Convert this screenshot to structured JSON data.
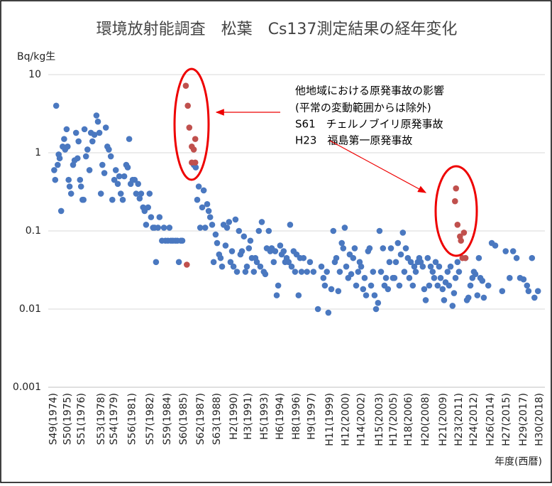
{
  "chart_data": {
    "type": "scatter",
    "title": "環境放射能調査　松葉　Cs137測定結果の経年変化",
    "y_label": "Bq/kg生",
    "x_label": "年度(西暦)",
    "annotations": [
      "他地域における原発事故の影響",
      "(平常の変動範囲からは除外)",
      "S61　チェルノブイリ原発事故",
      "H23　福島第一原発事故"
    ],
    "log_y": true,
    "grid": true,
    "ylim": [
      0.001,
      10
    ],
    "yticks": [
      10,
      1,
      0.1,
      0.01,
      0.001
    ],
    "xlim": [
      0,
      100
    ],
    "xticks": [
      {
        "value": 1.1,
        "label": "S49(1974)"
      },
      {
        "value": 3.9,
        "label": "S50(1975)"
      },
      {
        "value": 6.7,
        "label": "S51(1976)"
      },
      {
        "value": 10.7,
        "label": "S53(1978)"
      },
      {
        "value": 13.3,
        "label": "S54(1979)"
      },
      {
        "value": 16.9,
        "label": "S56(1981)"
      },
      {
        "value": 20.6,
        "label": "S57(1982)"
      },
      {
        "value": 24,
        "label": "S59(1984)"
      },
      {
        "value": 27.3,
        "label": "S60(1985)"
      },
      {
        "value": 30.7,
        "label": "S62(1987)"
      },
      {
        "value": 34,
        "label": "S63(1988)"
      },
      {
        "value": 37.4,
        "label": "H2(1990)"
      },
      {
        "value": 40.3,
        "label": "H3(1991)"
      },
      {
        "value": 43.6,
        "label": "H5(1993)"
      },
      {
        "value": 46.7,
        "label": "H6(1994)"
      },
      {
        "value": 50,
        "label": "H8(1996)"
      },
      {
        "value": 53.1,
        "label": "H9(1997)"
      },
      {
        "value": 56.7,
        "label": "H11(1999)"
      },
      {
        "value": 59.9,
        "label": "H12(2000)"
      },
      {
        "value": 63.1,
        "label": "H14(2002)"
      },
      {
        "value": 66.7,
        "label": "H15(2003)"
      },
      {
        "value": 69.6,
        "label": "H17(2005)"
      },
      {
        "value": 72.6,
        "label": "H18(2006)"
      },
      {
        "value": 76,
        "label": "H20(2008)"
      },
      {
        "value": 79.6,
        "label": "H21(2009)"
      },
      {
        "value": 82.7,
        "label": "H23(2011)"
      },
      {
        "value": 85.7,
        "label": "H24(2012)"
      },
      {
        "value": 89.1,
        "label": "H26(2014)"
      },
      {
        "value": 92.3,
        "label": "H27(2015)"
      },
      {
        "value": 95.7,
        "label": "H29(2017)"
      },
      {
        "value": 98.9,
        "label": "H30(2018)"
      }
    ],
    "series": [
      {
        "color": "#4a78c0",
        "points": [
          [
            1.2,
            0.6
          ],
          [
            1.4,
            0.45
          ],
          [
            1.6,
            4.0
          ],
          [
            1.9,
            0.7
          ],
          [
            2.1,
            0.95
          ],
          [
            2.3,
            0.85
          ],
          [
            2.6,
            0.18
          ],
          [
            2.9,
            1.2
          ],
          [
            3.2,
            1.5
          ],
          [
            3.4,
            1.1
          ],
          [
            3.7,
            2.0
          ],
          [
            3.9,
            1.2
          ],
          [
            4.1,
            0.45
          ],
          [
            4.3,
            0.37
          ],
          [
            4.6,
            0.3
          ],
          [
            5.0,
            0.7
          ],
          [
            5.3,
            0.8
          ],
          [
            5.6,
            1.8
          ],
          [
            5.9,
            0.85
          ],
          [
            6.1,
            1.4
          ],
          [
            6.4,
            0.45
          ],
          [
            6.6,
            0.37
          ],
          [
            6.9,
            0.25
          ],
          [
            7.1,
            0.25
          ],
          [
            7.3,
            2.0
          ],
          [
            7.6,
            0.9
          ],
          [
            7.9,
            1.1
          ],
          [
            8.3,
            0.6
          ],
          [
            8.6,
            1.8
          ],
          [
            8.9,
            1.4
          ],
          [
            9.3,
            1.7
          ],
          [
            9.7,
            3.0
          ],
          [
            10.0,
            2.5
          ],
          [
            10.3,
            1.8
          ],
          [
            10.6,
            0.3
          ],
          [
            10.9,
            0.7
          ],
          [
            11.3,
            0.55
          ],
          [
            11.6,
            2.1
          ],
          [
            11.9,
            1.2
          ],
          [
            12.2,
            1.1
          ],
          [
            12.6,
            0.9
          ],
          [
            12.9,
            0.25
          ],
          [
            13.3,
            0.45
          ],
          [
            13.6,
            0.6
          ],
          [
            14.0,
            0.4
          ],
          [
            14.3,
            0.5
          ],
          [
            14.6,
            0.3
          ],
          [
            15.0,
            0.25
          ],
          [
            15.3,
            0.5
          ],
          [
            15.7,
            0.7
          ],
          [
            16.0,
            0.65
          ],
          [
            16.3,
            1.5
          ],
          [
            16.6,
            0.4
          ],
          [
            17.0,
            0.45
          ],
          [
            17.4,
            0.45
          ],
          [
            17.7,
            0.3
          ],
          [
            18.1,
            0.4
          ],
          [
            18.4,
            0.26
          ],
          [
            18.7,
            0.3
          ],
          [
            19.1,
            0.2
          ],
          [
            19.4,
            0.18
          ],
          [
            19.7,
            0.12
          ],
          [
            20.1,
            0.2
          ],
          [
            20.4,
            0.3
          ],
          [
            20.7,
            0.15
          ],
          [
            21.1,
            0.11
          ],
          [
            21.4,
            0.11
          ],
          [
            21.7,
            0.04
          ],
          [
            22.1,
            0.11
          ],
          [
            22.4,
            0.15
          ],
          [
            22.9,
            0.075
          ],
          [
            23.3,
            0.11
          ],
          [
            23.6,
            0.075
          ],
          [
            24.1,
            0.075
          ],
          [
            24.4,
            0.11
          ],
          [
            24.7,
            0.075
          ],
          [
            25.1,
            0.075
          ],
          [
            25.6,
            0.075
          ],
          [
            26.0,
            0.075
          ],
          [
            26.3,
            0.04
          ],
          [
            26.7,
            0.075
          ],
          [
            27.0,
            0.075
          ],
          [
            29.3,
            0.7
          ],
          [
            29.7,
            0.65
          ],
          [
            30.0,
            0.25
          ],
          [
            30.3,
            0.37
          ],
          [
            30.6,
            0.11
          ],
          [
            31.0,
            0.2
          ],
          [
            31.3,
            0.33
          ],
          [
            31.6,
            0.11
          ],
          [
            32.0,
            0.22
          ],
          [
            32.3,
            0.18
          ],
          [
            32.6,
            0.15
          ],
          [
            33.0,
            0.12
          ],
          [
            33.3,
            0.04
          ],
          [
            33.7,
            0.09
          ],
          [
            34.0,
            0.07
          ],
          [
            34.4,
            0.05
          ],
          [
            34.7,
            0.045
          ],
          [
            35.0,
            0.035
          ],
          [
            35.3,
            0.12
          ],
          [
            35.7,
            0.065
          ],
          [
            36.0,
            0.11
          ],
          [
            36.4,
            0.13
          ],
          [
            36.7,
            0.04
          ],
          [
            37.0,
            0.055
          ],
          [
            37.3,
            0.035
          ],
          [
            37.7,
            0.14
          ],
          [
            38.0,
            0.03
          ],
          [
            38.4,
            0.1
          ],
          [
            38.7,
            0.05
          ],
          [
            39.0,
            0.055
          ],
          [
            39.4,
            0.085
          ],
          [
            39.7,
            0.03
          ],
          [
            40.0,
            0.035
          ],
          [
            40.4,
            0.06
          ],
          [
            40.7,
            0.075
          ],
          [
            41.0,
            0.045
          ],
          [
            41.4,
            0.03
          ],
          [
            41.7,
            0.045
          ],
          [
            42.0,
            0.04
          ],
          [
            42.4,
            0.1
          ],
          [
            42.7,
            0.035
          ],
          [
            43.0,
            0.13
          ],
          [
            43.4,
            0.03
          ],
          [
            43.7,
            0.028
          ],
          [
            44.0,
            0.06
          ],
          [
            44.4,
            0.1
          ],
          [
            44.7,
            0.055
          ],
          [
            45.0,
            0.06
          ],
          [
            45.4,
            0.04
          ],
          [
            45.7,
            0.055
          ],
          [
            46.0,
            0.015
          ],
          [
            46.3,
            0.02
          ],
          [
            46.7,
            0.065
          ],
          [
            47.0,
            0.05
          ],
          [
            47.4,
            0.055
          ],
          [
            47.7,
            0.04
          ],
          [
            48.0,
            0.045
          ],
          [
            48.4,
            0.04
          ],
          [
            48.7,
            0.12
          ],
          [
            49.0,
            0.035
          ],
          [
            49.4,
            0.055
          ],
          [
            49.7,
            0.03
          ],
          [
            50.0,
            0.05
          ],
          [
            50.4,
            0.015
          ],
          [
            50.7,
            0.045
          ],
          [
            51.0,
            0.03
          ],
          [
            51.4,
            0.045
          ],
          [
            52.1,
            0.03
          ],
          [
            52.7,
            0.04
          ],
          [
            53.4,
            0.03
          ],
          [
            54.3,
            0.01
          ],
          [
            55.0,
            0.035
          ],
          [
            55.4,
            0.025
          ],
          [
            55.7,
            0.02
          ],
          [
            56.1,
            0.03
          ],
          [
            56.4,
            0.009
          ],
          [
            57.0,
            0.018
          ],
          [
            57.4,
            0.1
          ],
          [
            57.7,
            0.04
          ],
          [
            58.0,
            0.045
          ],
          [
            58.4,
            0.017
          ],
          [
            58.7,
            0.03
          ],
          [
            59.1,
            0.07
          ],
          [
            59.4,
            0.06
          ],
          [
            59.7,
            0.11
          ],
          [
            60.0,
            0.035
          ],
          [
            60.4,
            0.025
          ],
          [
            60.7,
            0.05
          ],
          [
            61.0,
            0.028
          ],
          [
            61.4,
            0.045
          ],
          [
            61.7,
            0.06
          ],
          [
            62.0,
            0.02
          ],
          [
            62.4,
            0.03
          ],
          [
            62.7,
            0.04
          ],
          [
            63.0,
            0.035
          ],
          [
            63.4,
            0.018
          ],
          [
            63.7,
            0.025
          ],
          [
            64.0,
            0.015
          ],
          [
            64.4,
            0.055
          ],
          [
            64.7,
            0.06
          ],
          [
            65.0,
            0.02
          ],
          [
            65.4,
            0.03
          ],
          [
            65.7,
            0.015
          ],
          [
            66.0,
            0.01
          ],
          [
            66.4,
            0.012
          ],
          [
            66.7,
            0.1
          ],
          [
            67.0,
            0.03
          ],
          [
            67.4,
            0.06
          ],
          [
            67.7,
            0.02
          ],
          [
            68.0,
            0.025
          ],
          [
            68.4,
            0.018
          ],
          [
            68.7,
            0.04
          ],
          [
            69.0,
            0.06
          ],
          [
            69.4,
            0.025
          ],
          [
            69.7,
            0.025
          ],
          [
            70.0,
            0.04
          ],
          [
            70.4,
            0.07
          ],
          [
            70.7,
            0.02
          ],
          [
            71.0,
            0.05
          ],
          [
            71.4,
            0.095
          ],
          [
            71.7,
            0.03
          ],
          [
            72.0,
            0.06
          ],
          [
            72.4,
            0.045
          ],
          [
            72.7,
            0.025
          ],
          [
            73.0,
            0.04
          ],
          [
            73.4,
            0.02
          ],
          [
            73.7,
            0.035
          ],
          [
            74.0,
            0.03
          ],
          [
            74.4,
            0.04
          ],
          [
            74.7,
            0.045
          ],
          [
            75.0,
            0.04
          ],
          [
            75.4,
            0.035
          ],
          [
            75.7,
            0.018
          ],
          [
            76.0,
            0.013
          ],
          [
            76.4,
            0.045
          ],
          [
            76.7,
            0.02
          ],
          [
            77.0,
            0.035
          ],
          [
            77.4,
            0.03
          ],
          [
            77.7,
            0.025
          ],
          [
            78.0,
            0.04
          ],
          [
            78.4,
            0.02
          ],
          [
            78.7,
            0.035
          ],
          [
            79.0,
            0.025
          ],
          [
            79.4,
            0.018
          ],
          [
            79.7,
            0.013
          ],
          [
            80.0,
            0.022
          ],
          [
            80.4,
            0.03
          ],
          [
            80.7,
            0.02
          ],
          [
            81.0,
            0.035
          ],
          [
            81.4,
            0.011
          ],
          [
            81.7,
            0.016
          ],
          [
            82.0,
            0.025
          ],
          [
            82.4,
            0.04
          ],
          [
            82.7,
            0.03
          ],
          [
            84.0,
            0.045
          ],
          [
            84.3,
            0.013
          ],
          [
            84.6,
            0.014
          ],
          [
            85.0,
            0.02
          ],
          [
            85.4,
            0.025
          ],
          [
            85.7,
            0.03
          ],
          [
            86.0,
            0.028
          ],
          [
            86.4,
            0.015
          ],
          [
            86.7,
            0.045
          ],
          [
            87.0,
            0.025
          ],
          [
            87.4,
            0.023
          ],
          [
            87.7,
            0.014
          ],
          [
            88.6,
            0.02
          ],
          [
            89.3,
            0.07
          ],
          [
            90.0,
            0.065
          ],
          [
            91.4,
            0.017
          ],
          [
            92.1,
            0.055
          ],
          [
            92.9,
            0.025
          ],
          [
            93.6,
            0.055
          ],
          [
            94.3,
            0.045
          ],
          [
            95.0,
            0.025
          ],
          [
            95.7,
            0.024
          ],
          [
            96.4,
            0.02
          ],
          [
            96.7,
            0.017
          ],
          [
            97.4,
            0.045
          ],
          [
            97.9,
            0.014
          ],
          [
            98.6,
            0.017
          ]
        ]
      },
      {
        "color": "#c0504d",
        "points": [
          [
            27.7,
            7.2
          ],
          [
            28.1,
            4.0
          ],
          [
            28.4,
            2.1
          ],
          [
            28.9,
            1.2
          ],
          [
            29.3,
            1.1
          ],
          [
            29.6,
            1.5
          ],
          [
            28.9,
            0.75
          ],
          [
            29.6,
            0.75
          ],
          [
            27.9,
            0.037
          ],
          [
            82.1,
            0.35
          ],
          [
            81.9,
            0.24
          ],
          [
            82.4,
            0.12
          ],
          [
            82.9,
            0.085
          ],
          [
            83.1,
            0.075
          ],
          [
            83.7,
            0.095
          ],
          [
            83.4,
            0.045
          ],
          [
            84.0,
            0.045
          ]
        ]
      }
    ]
  }
}
